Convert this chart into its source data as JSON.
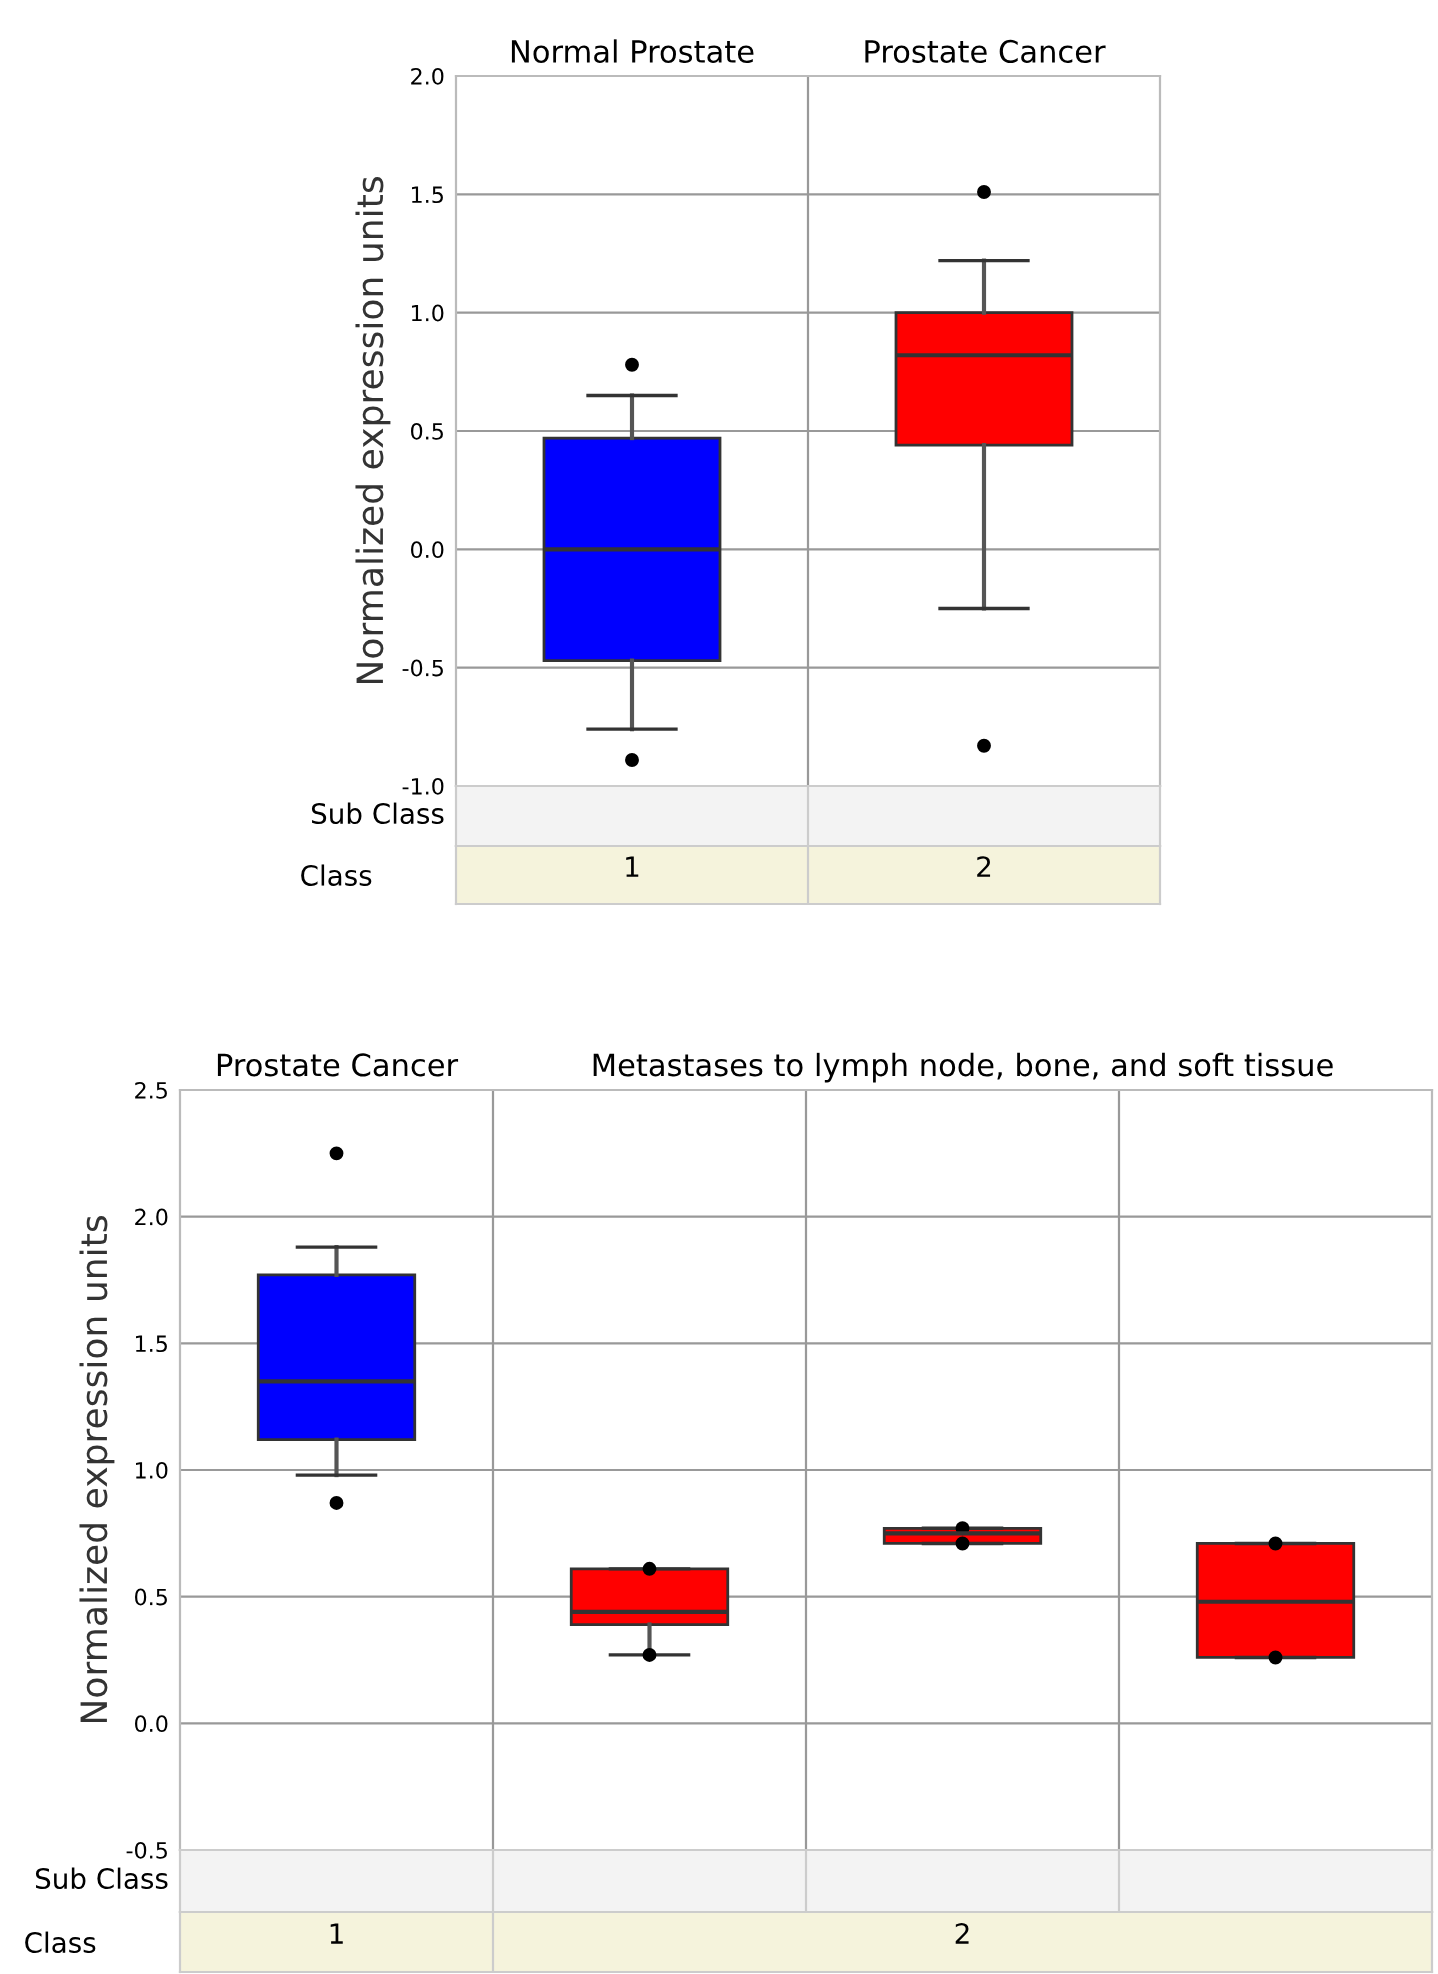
{
  "chart_data": [
    {
      "type": "box",
      "categories": [
        "1",
        "2"
      ],
      "xlabel": "Class",
      "ylabel": "Normalized expression units",
      "annotations": [
        "Normal Prostate",
        "Prostate Cancer",
        "Sub Class"
      ],
      "colors": [
        "#0000ff",
        "#ff0000"
      ],
      "boxes": [
        {
          "low": -0.76,
          "q1": -0.47,
          "median": 0.0,
          "q3": 0.47,
          "high": 0.65,
          "outliers": [
            0.78,
            -0.89
          ]
        },
        {
          "low": -0.25,
          "q1": 0.44,
          "median": 0.82,
          "q3": 1.0,
          "high": 1.22,
          "outliers": [
            1.51,
            -0.83
          ]
        }
      ],
      "ylim": [
        -1,
        2
      ],
      "yticks": [
        {
          "value": -1,
          "label": "-1.0"
        },
        {
          "value": -0.5,
          "label": "-0.5"
        },
        {
          "value": 0,
          "label": "0.0"
        },
        {
          "value": 0.5,
          "label": "0.5"
        },
        {
          "value": 1,
          "label": "1.0"
        },
        {
          "value": 1.5,
          "label": "1.5"
        },
        {
          "value": 2,
          "label": "2.0"
        }
      ],
      "grid": "y"
    },
    {
      "type": "box",
      "categories": [
        "1",
        null,
        "2",
        null
      ],
      "xlabel": "Class",
      "ylabel": "Normalized expression units",
      "annotations": [
        "Prostate Cancer",
        "Metastases to lymph node, bone, and soft tissue",
        "Sub Class"
      ],
      "colors": [
        "#0000ff",
        "#ff0000",
        "#ff0000",
        "#ff0000"
      ],
      "boxes": [
        {
          "low": 0.98,
          "q1": 1.12,
          "median": 1.35,
          "q3": 1.77,
          "high": 1.88,
          "outliers": [
            2.25,
            0.87
          ]
        },
        {
          "low": 0.27,
          "q1": 0.39,
          "median": 0.44,
          "q3": 0.61,
          "high": 0.61,
          "outliers": [
            0.61,
            0.27
          ]
        },
        {
          "low": 0.71,
          "q1": 0.71,
          "median": 0.75,
          "q3": 0.77,
          "high": 0.77,
          "outliers": [
            0.77,
            0.71
          ]
        },
        {
          "low": 0.26,
          "q1": 0.26,
          "median": 0.48,
          "q3": 0.71,
          "high": 0.71,
          "outliers": [
            0.71,
            0.26
          ]
        }
      ],
      "ylim": [
        -0.5,
        2.5
      ],
      "yticks": [
        {
          "value": -0.5,
          "label": "-0.5"
        },
        {
          "value": 0,
          "label": "0.0"
        },
        {
          "value": 0.5,
          "label": "0.5"
        },
        {
          "value": 1,
          "label": "1.0"
        },
        {
          "value": 1.5,
          "label": "1.5"
        },
        {
          "value": 2,
          "label": "2.0"
        },
        {
          "value": 2.5,
          "label": "2.5"
        }
      ],
      "grid": "y"
    }
  ]
}
